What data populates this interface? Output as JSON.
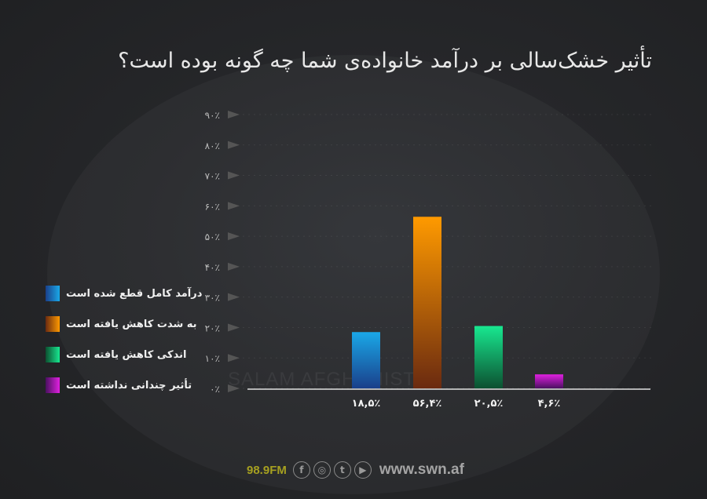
{
  "chart_data": {
    "type": "bar",
    "title": "تأثیر خشک‌سالی بر درآمد خانواده‌ی شما چه گونه بوده است؟",
    "categories": [
      "درآمد کامل قطع شده است",
      "به شدت کاهش یافته است",
      "اندکی کاهش یافته است",
      "تأثیر چندانی نداشته است"
    ],
    "values": [
      18.5,
      56.4,
      20.5,
      4.6
    ],
    "value_labels": [
      "۱۸,۵٪",
      "۵۶,۴٪",
      "۲۰,۵٪",
      "۴,۶٪"
    ],
    "colors": [
      [
        "#1aa8e8",
        "#1a3f8a"
      ],
      [
        "#ff9a00",
        "#6a2a10"
      ],
      [
        "#18e890",
        "#0c5030"
      ],
      [
        "#e020e0",
        "#4a1060"
      ]
    ],
    "ylim": [
      0,
      90
    ],
    "yticks": [
      0,
      10,
      20,
      30,
      40,
      50,
      60,
      70,
      80,
      90
    ],
    "ytick_labels": [
      "۰٪",
      "۱۰٪",
      "۲۰٪",
      "۳۰٪",
      "۴۰٪",
      "۵۰٪",
      "۶۰٪",
      "۷۰٪",
      "۸۰٪",
      "۹۰٪"
    ],
    "legend": "left",
    "grid": true
  },
  "watermark": "SALAM AFGHANISTAN",
  "footer": {
    "fm": "98.9FM",
    "url": "www.swn.af",
    "icons": [
      "facebook-icon",
      "instagram-icon",
      "twitter-icon",
      "youtube-icon"
    ]
  }
}
